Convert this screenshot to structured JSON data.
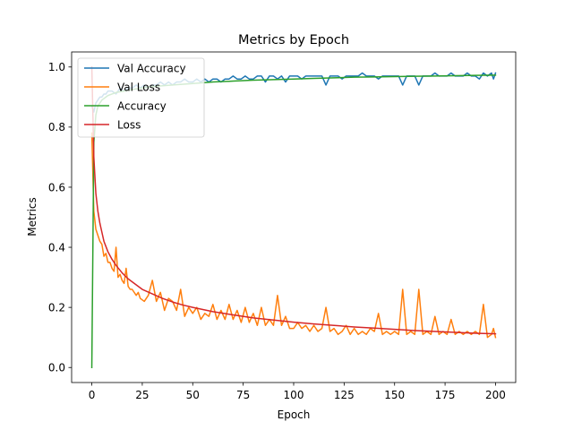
{
  "chart_data": {
    "type": "line",
    "title": "Metrics by Epoch",
    "xlabel": "Epoch",
    "ylabel": "Metrics",
    "xlim": [
      -10,
      210
    ],
    "ylim": [
      -0.05,
      1.05
    ],
    "xticks": [
      0,
      25,
      50,
      75,
      100,
      125,
      150,
      175,
      200
    ],
    "yticks": [
      0.0,
      0.2,
      0.4,
      0.6,
      0.8,
      1.0
    ],
    "grid": false,
    "legend_position": "top-left",
    "series": [
      {
        "name": "Val Accuracy",
        "color": "#1f77b4",
        "points": [
          [
            0,
            0.87
          ],
          [
            1,
            0.85
          ],
          [
            2,
            0.88
          ],
          [
            3,
            0.89
          ],
          [
            4,
            0.9
          ],
          [
            5,
            0.9
          ],
          [
            6,
            0.91
          ],
          [
            7,
            0.91
          ],
          [
            8,
            0.92
          ],
          [
            9,
            0.92
          ],
          [
            10,
            0.92
          ],
          [
            12,
            0.91
          ],
          [
            14,
            0.93
          ],
          [
            16,
            0.92
          ],
          [
            18,
            0.93
          ],
          [
            20,
            0.93
          ],
          [
            22,
            0.94
          ],
          [
            24,
            0.93
          ],
          [
            26,
            0.94
          ],
          [
            28,
            0.93
          ],
          [
            30,
            0.94
          ],
          [
            32,
            0.94
          ],
          [
            34,
            0.95
          ],
          [
            36,
            0.94
          ],
          [
            38,
            0.95
          ],
          [
            40,
            0.94
          ],
          [
            42,
            0.95
          ],
          [
            44,
            0.95
          ],
          [
            46,
            0.96
          ],
          [
            48,
            0.95
          ],
          [
            50,
            0.95
          ],
          [
            52,
            0.96
          ],
          [
            54,
            0.95
          ],
          [
            56,
            0.96
          ],
          [
            58,
            0.95
          ],
          [
            60,
            0.96
          ],
          [
            62,
            0.96
          ],
          [
            64,
            0.95
          ],
          [
            66,
            0.96
          ],
          [
            68,
            0.96
          ],
          [
            70,
            0.97
          ],
          [
            72,
            0.96
          ],
          [
            74,
            0.96
          ],
          [
            76,
            0.97
          ],
          [
            78,
            0.96
          ],
          [
            80,
            0.96
          ],
          [
            82,
            0.97
          ],
          [
            84,
            0.97
          ],
          [
            86,
            0.95
          ],
          [
            88,
            0.97
          ],
          [
            90,
            0.97
          ],
          [
            92,
            0.96
          ],
          [
            94,
            0.97
          ],
          [
            96,
            0.95
          ],
          [
            98,
            0.97
          ],
          [
            100,
            0.97
          ],
          [
            102,
            0.97
          ],
          [
            104,
            0.96
          ],
          [
            106,
            0.97
          ],
          [
            108,
            0.97
          ],
          [
            110,
            0.97
          ],
          [
            112,
            0.97
          ],
          [
            114,
            0.97
          ],
          [
            116,
            0.94
          ],
          [
            118,
            0.97
          ],
          [
            120,
            0.97
          ],
          [
            122,
            0.97
          ],
          [
            124,
            0.96
          ],
          [
            126,
            0.97
          ],
          [
            128,
            0.97
          ],
          [
            130,
            0.97
          ],
          [
            132,
            0.97
          ],
          [
            134,
            0.98
          ],
          [
            136,
            0.97
          ],
          [
            138,
            0.97
          ],
          [
            140,
            0.97
          ],
          [
            142,
            0.96
          ],
          [
            144,
            0.97
          ],
          [
            146,
            0.97
          ],
          [
            148,
            0.97
          ],
          [
            150,
            0.97
          ],
          [
            152,
            0.97
          ],
          [
            154,
            0.94
          ],
          [
            156,
            0.97
          ],
          [
            158,
            0.97
          ],
          [
            160,
            0.97
          ],
          [
            162,
            0.94
          ],
          [
            164,
            0.97
          ],
          [
            166,
            0.97
          ],
          [
            168,
            0.97
          ],
          [
            170,
            0.98
          ],
          [
            172,
            0.97
          ],
          [
            174,
            0.97
          ],
          [
            176,
            0.97
          ],
          [
            178,
            0.98
          ],
          [
            180,
            0.97
          ],
          [
            182,
            0.97
          ],
          [
            184,
            0.97
          ],
          [
            186,
            0.98
          ],
          [
            188,
            0.97
          ],
          [
            190,
            0.97
          ],
          [
            192,
            0.96
          ],
          [
            194,
            0.98
          ],
          [
            196,
            0.97
          ],
          [
            198,
            0.98
          ],
          [
            199,
            0.96
          ],
          [
            200,
            0.98
          ]
        ]
      },
      {
        "name": "Val Loss",
        "color": "#ff7f0e",
        "points": [
          [
            0,
            0.78
          ],
          [
            1,
            0.52
          ],
          [
            2,
            0.46
          ],
          [
            3,
            0.44
          ],
          [
            4,
            0.42
          ],
          [
            5,
            0.41
          ],
          [
            6,
            0.37
          ],
          [
            7,
            0.38
          ],
          [
            8,
            0.35
          ],
          [
            9,
            0.35
          ],
          [
            10,
            0.33
          ],
          [
            11,
            0.32
          ],
          [
            12,
            0.4
          ],
          [
            13,
            0.3
          ],
          [
            14,
            0.31
          ],
          [
            15,
            0.29
          ],
          [
            16,
            0.28
          ],
          [
            17,
            0.33
          ],
          [
            18,
            0.27
          ],
          [
            19,
            0.26
          ],
          [
            20,
            0.26
          ],
          [
            21,
            0.25
          ],
          [
            22,
            0.24
          ],
          [
            23,
            0.25
          ],
          [
            24,
            0.23
          ],
          [
            26,
            0.22
          ],
          [
            28,
            0.24
          ],
          [
            30,
            0.29
          ],
          [
            32,
            0.22
          ],
          [
            34,
            0.25
          ],
          [
            36,
            0.19
          ],
          [
            38,
            0.23
          ],
          [
            40,
            0.22
          ],
          [
            42,
            0.19
          ],
          [
            44,
            0.26
          ],
          [
            46,
            0.17
          ],
          [
            48,
            0.2
          ],
          [
            50,
            0.18
          ],
          [
            52,
            0.2
          ],
          [
            54,
            0.16
          ],
          [
            56,
            0.18
          ],
          [
            58,
            0.17
          ],
          [
            60,
            0.21
          ],
          [
            62,
            0.16
          ],
          [
            64,
            0.19
          ],
          [
            66,
            0.16
          ],
          [
            68,
            0.21
          ],
          [
            70,
            0.16
          ],
          [
            72,
            0.19
          ],
          [
            74,
            0.15
          ],
          [
            76,
            0.2
          ],
          [
            78,
            0.15
          ],
          [
            80,
            0.18
          ],
          [
            82,
            0.14
          ],
          [
            84,
            0.2
          ],
          [
            86,
            0.14
          ],
          [
            88,
            0.16
          ],
          [
            90,
            0.14
          ],
          [
            92,
            0.24
          ],
          [
            94,
            0.14
          ],
          [
            96,
            0.17
          ],
          [
            98,
            0.13
          ],
          [
            100,
            0.13
          ],
          [
            102,
            0.15
          ],
          [
            104,
            0.13
          ],
          [
            106,
            0.14
          ],
          [
            108,
            0.12
          ],
          [
            110,
            0.14
          ],
          [
            112,
            0.12
          ],
          [
            114,
            0.13
          ],
          [
            116,
            0.2
          ],
          [
            118,
            0.12
          ],
          [
            120,
            0.13
          ],
          [
            122,
            0.11
          ],
          [
            124,
            0.12
          ],
          [
            126,
            0.14
          ],
          [
            128,
            0.11
          ],
          [
            130,
            0.13
          ],
          [
            132,
            0.11
          ],
          [
            134,
            0.12
          ],
          [
            136,
            0.11
          ],
          [
            138,
            0.13
          ],
          [
            140,
            0.12
          ],
          [
            142,
            0.18
          ],
          [
            144,
            0.11
          ],
          [
            146,
            0.12
          ],
          [
            148,
            0.11
          ],
          [
            150,
            0.12
          ],
          [
            152,
            0.11
          ],
          [
            154,
            0.26
          ],
          [
            156,
            0.11
          ],
          [
            158,
            0.12
          ],
          [
            160,
            0.11
          ],
          [
            162,
            0.26
          ],
          [
            164,
            0.11
          ],
          [
            166,
            0.12
          ],
          [
            168,
            0.11
          ],
          [
            170,
            0.17
          ],
          [
            172,
            0.11
          ],
          [
            174,
            0.12
          ],
          [
            176,
            0.11
          ],
          [
            178,
            0.16
          ],
          [
            180,
            0.11
          ],
          [
            182,
            0.12
          ],
          [
            184,
            0.11
          ],
          [
            186,
            0.12
          ],
          [
            188,
            0.11
          ],
          [
            190,
            0.12
          ],
          [
            192,
            0.11
          ],
          [
            194,
            0.21
          ],
          [
            196,
            0.1
          ],
          [
            198,
            0.11
          ],
          [
            199,
            0.13
          ],
          [
            200,
            0.1
          ]
        ]
      },
      {
        "name": "Accuracy",
        "color": "#2ca02c",
        "points": [
          [
            0,
            0.0
          ],
          [
            1,
            0.75
          ],
          [
            2,
            0.84
          ],
          [
            3,
            0.87
          ],
          [
            5,
            0.89
          ],
          [
            8,
            0.905
          ],
          [
            12,
            0.915
          ],
          [
            16,
            0.92
          ],
          [
            20,
            0.925
          ],
          [
            25,
            0.93
          ],
          [
            30,
            0.935
          ],
          [
            40,
            0.94
          ],
          [
            50,
            0.945
          ],
          [
            60,
            0.95
          ],
          [
            70,
            0.953
          ],
          [
            80,
            0.956
          ],
          [
            90,
            0.958
          ],
          [
            100,
            0.96
          ],
          [
            110,
            0.962
          ],
          [
            120,
            0.964
          ],
          [
            130,
            0.966
          ],
          [
            140,
            0.967
          ],
          [
            150,
            0.968
          ],
          [
            160,
            0.969
          ],
          [
            170,
            0.97
          ],
          [
            180,
            0.971
          ],
          [
            190,
            0.972
          ],
          [
            200,
            0.973
          ]
        ]
      },
      {
        "name": "Loss",
        "color": "#d62728",
        "points": [
          [
            0,
            1.0
          ],
          [
            1,
            0.7
          ],
          [
            2,
            0.58
          ],
          [
            3,
            0.52
          ],
          [
            4,
            0.48
          ],
          [
            5,
            0.45
          ],
          [
            6,
            0.42
          ],
          [
            8,
            0.385
          ],
          [
            10,
            0.36
          ],
          [
            12,
            0.34
          ],
          [
            15,
            0.315
          ],
          [
            18,
            0.295
          ],
          [
            20,
            0.285
          ],
          [
            25,
            0.26
          ],
          [
            30,
            0.245
          ],
          [
            35,
            0.23
          ],
          [
            40,
            0.218
          ],
          [
            45,
            0.208
          ],
          [
            50,
            0.2
          ],
          [
            60,
            0.186
          ],
          [
            70,
            0.175
          ],
          [
            80,
            0.165
          ],
          [
            90,
            0.158
          ],
          [
            100,
            0.151
          ],
          [
            110,
            0.145
          ],
          [
            120,
            0.14
          ],
          [
            130,
            0.135
          ],
          [
            140,
            0.131
          ],
          [
            150,
            0.127
          ],
          [
            160,
            0.123
          ],
          [
            170,
            0.12
          ],
          [
            180,
            0.117
          ],
          [
            190,
            0.114
          ],
          [
            200,
            0.112
          ]
        ]
      }
    ]
  }
}
